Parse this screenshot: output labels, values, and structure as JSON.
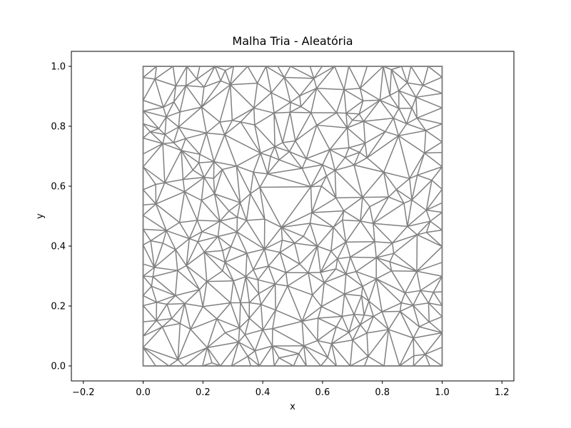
{
  "chart_data": {
    "type": "triangular-mesh",
    "title": "Malha Tria - Aleatória",
    "xlabel": "x",
    "ylabel": "y",
    "xlim": [
      -0.24,
      1.24
    ],
    "ylim": [
      -0.05,
      1.05
    ],
    "xticks": [
      -0.2,
      0.0,
      0.2,
      0.4,
      0.6,
      0.8,
      1.0,
      1.2
    ],
    "yticks": [
      0.0,
      0.2,
      0.4,
      0.6,
      0.8,
      1.0
    ],
    "xtick_labels": [
      "−0.2",
      "0.0",
      "0.2",
      "0.4",
      "0.6",
      "0.8",
      "1.0",
      "1.2"
    ],
    "ytick_labels": [
      "0.0",
      "0.2",
      "0.4",
      "0.6",
      "0.8",
      "1.0"
    ],
    "domain": [
      [
        0,
        0
      ],
      [
        1,
        0
      ],
      [
        1,
        1
      ],
      [
        0,
        1
      ]
    ],
    "edge_color": "#808080",
    "mesh": {
      "points_per_side": 20,
      "interior_points": 260,
      "seed": 7
    }
  }
}
